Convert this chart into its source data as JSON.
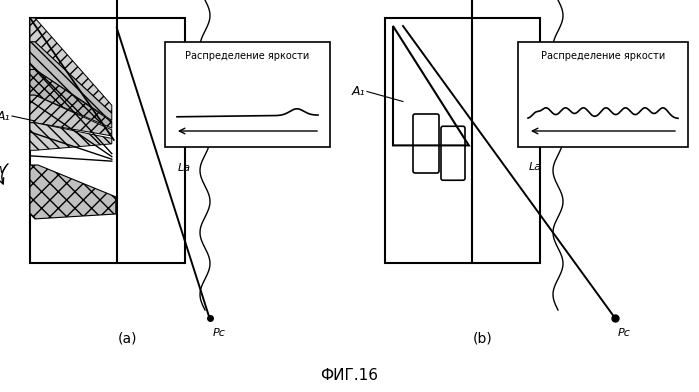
{
  "bg_color": "#ffffff",
  "panel_a_label": "(a)",
  "panel_b_label": "(b)",
  "fig_label": "ФИГ.16",
  "brightness_label": "Распределение яркости",
  "A1_label": "A₁",
  "La_label": "Lа",
  "Ps_label": "Pс",
  "V_label": "v"
}
